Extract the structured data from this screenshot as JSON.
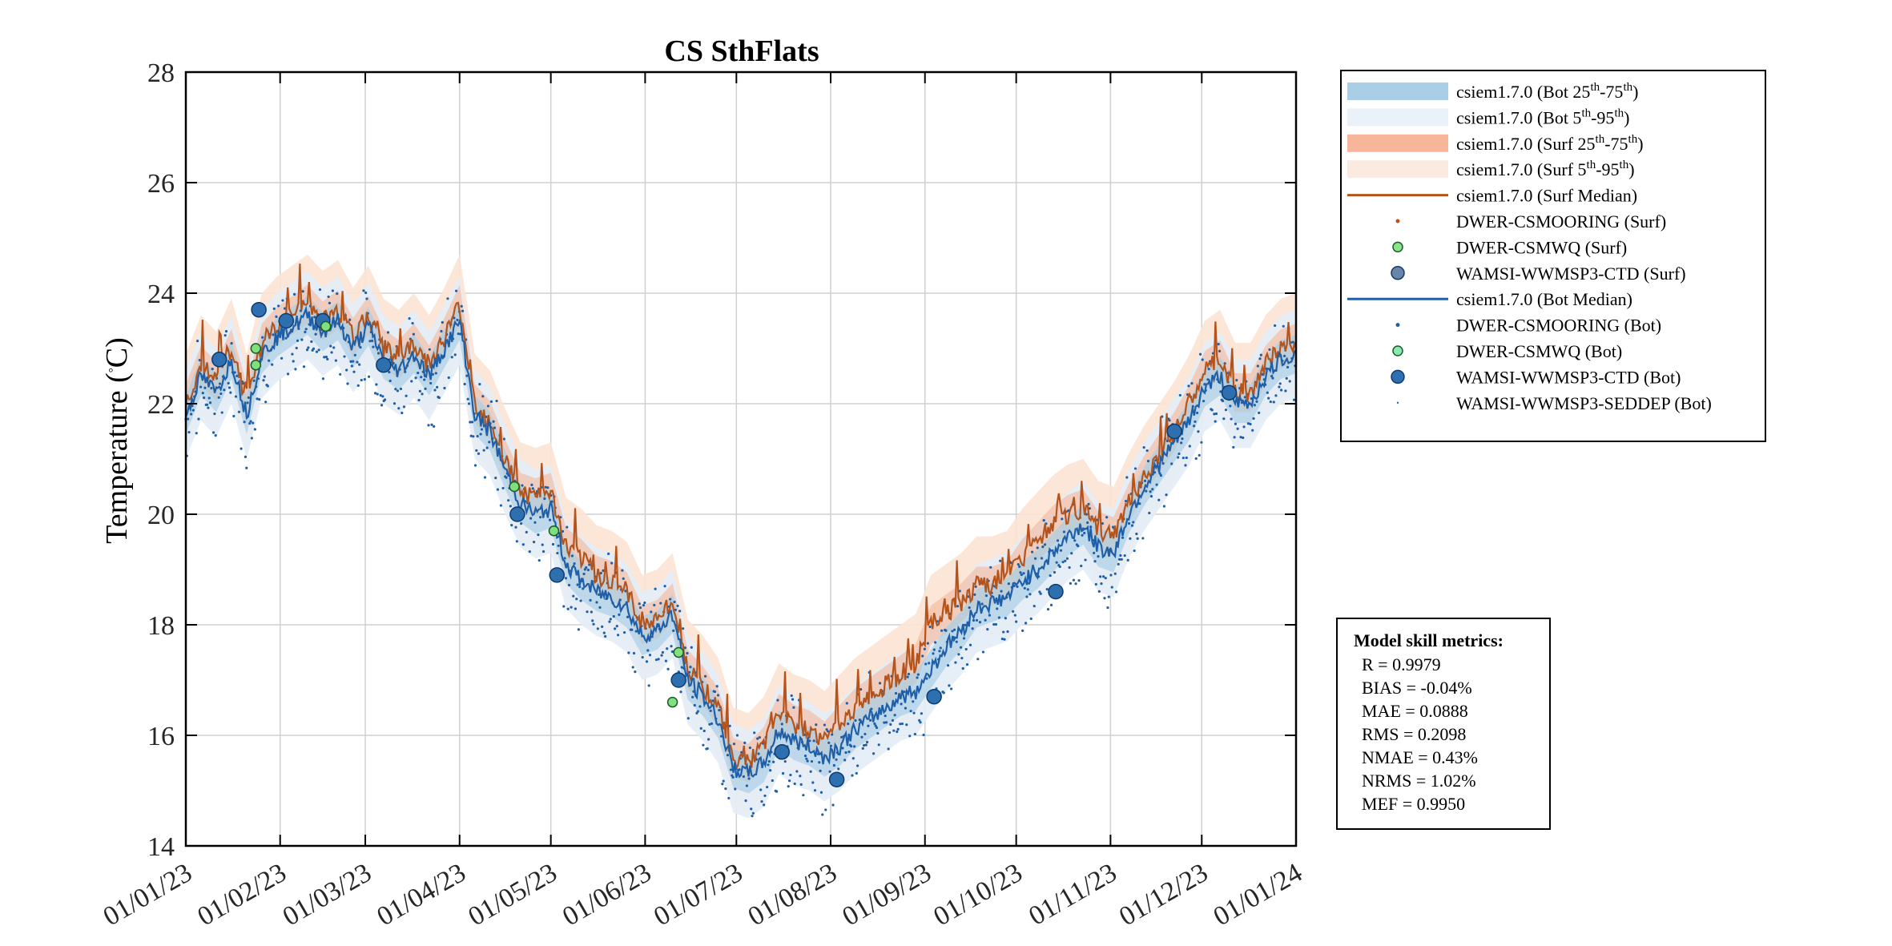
{
  "chart_data": {
    "type": "line",
    "title": "CS SthFlats",
    "ylabel": "Temperature (°C)",
    "ylabel_main": "Temperature (",
    "ylabel_degree": "°",
    "ylabel_unit": "C)",
    "xlabel": "",
    "ylim": [
      14,
      28
    ],
    "yticks": [
      "14",
      "16",
      "18",
      "20",
      "22",
      "24",
      "26",
      "28"
    ],
    "xlim_days": [
      0,
      365
    ],
    "xticks": [
      {
        "day": 0,
        "label": "01/01/23"
      },
      {
        "day": 31,
        "label": "01/02/23"
      },
      {
        "day": 59,
        "label": "01/03/23"
      },
      {
        "day": 90,
        "label": "01/04/23"
      },
      {
        "day": 120,
        "label": "01/05/23"
      },
      {
        "day": 151,
        "label": "01/06/23"
      },
      {
        "day": 181,
        "label": "01/07/23"
      },
      {
        "day": 212,
        "label": "01/08/23"
      },
      {
        "day": 243,
        "label": "01/09/23"
      },
      {
        "day": 273,
        "label": "01/10/23"
      },
      {
        "day": 304,
        "label": "01/11/23"
      },
      {
        "day": 334,
        "label": "01/12/23"
      },
      {
        "day": 365,
        "label": "01/01/24"
      }
    ],
    "grid": true,
    "series": [
      {
        "name": "csiem1.7.0 (Bot Median)",
        "color": "#1f5fa8",
        "x": [
          0,
          5,
          10,
          15,
          20,
          25,
          30,
          35,
          40,
          45,
          50,
          55,
          60,
          65,
          70,
          75,
          80,
          85,
          90,
          95,
          100,
          105,
          110,
          115,
          120,
          125,
          130,
          135,
          140,
          145,
          150,
          155,
          160,
          165,
          170,
          175,
          180,
          185,
          190,
          195,
          200,
          205,
          210,
          215,
          220,
          225,
          230,
          235,
          240,
          245,
          250,
          255,
          260,
          265,
          270,
          275,
          280,
          285,
          290,
          295,
          300,
          305,
          310,
          315,
          320,
          325,
          330,
          335,
          340,
          345,
          350,
          355,
          360,
          365
        ],
        "y": [
          21.8,
          22.5,
          22.2,
          22.8,
          21.8,
          22.9,
          23.2,
          23.4,
          23.6,
          23.3,
          23.5,
          23.0,
          23.4,
          22.8,
          22.6,
          22.9,
          22.5,
          23.0,
          23.5,
          21.8,
          21.5,
          20.8,
          20.2,
          20.0,
          20.1,
          19.1,
          18.8,
          18.6,
          18.5,
          18.3,
          17.8,
          17.9,
          18.2,
          17.0,
          16.7,
          16.3,
          15.4,
          15.3,
          15.5,
          16.1,
          15.9,
          15.8,
          15.6,
          15.8,
          16.1,
          16.3,
          16.5,
          16.7,
          16.8,
          17.2,
          17.6,
          17.9,
          18.3,
          18.4,
          18.5,
          18.8,
          19.0,
          19.3,
          19.6,
          19.8,
          19.4,
          19.3,
          20.0,
          20.5,
          20.9,
          21.3,
          21.7,
          22.3,
          22.5,
          22.0,
          22.0,
          22.5,
          22.8,
          22.9
        ]
      },
      {
        "name": "csiem1.7.0 (Surf Median)",
        "color": "#b4541c",
        "x": [
          0,
          5,
          10,
          15,
          20,
          25,
          30,
          35,
          40,
          45,
          50,
          55,
          60,
          65,
          70,
          75,
          80,
          85,
          90,
          95,
          100,
          105,
          110,
          115,
          120,
          125,
          130,
          135,
          140,
          145,
          150,
          155,
          160,
          165,
          170,
          175,
          180,
          185,
          190,
          195,
          200,
          205,
          210,
          215,
          220,
          225,
          230,
          235,
          240,
          245,
          250,
          255,
          260,
          265,
          270,
          275,
          280,
          285,
          290,
          295,
          300,
          305,
          310,
          315,
          320,
          325,
          330,
          335,
          340,
          345,
          350,
          355,
          360,
          365
        ],
        "y": [
          22.0,
          22.7,
          22.4,
          23.0,
          22.0,
          23.1,
          23.4,
          23.6,
          23.8,
          23.5,
          23.7,
          23.2,
          23.6,
          23.0,
          22.8,
          23.1,
          22.7,
          23.2,
          23.8,
          22.0,
          21.7,
          21.0,
          20.4,
          20.3,
          20.4,
          19.4,
          19.2,
          18.9,
          18.8,
          18.6,
          18.0,
          18.1,
          18.4,
          17.2,
          16.9,
          16.5,
          15.6,
          15.5,
          15.8,
          16.4,
          16.2,
          16.1,
          15.9,
          16.2,
          16.5,
          16.7,
          16.9,
          17.1,
          17.3,
          18.0,
          18.2,
          18.4,
          18.7,
          18.7,
          18.8,
          19.2,
          19.5,
          19.8,
          20.0,
          20.1,
          19.7,
          19.6,
          20.2,
          20.7,
          21.1,
          21.5,
          22.0,
          22.6,
          22.8,
          22.2,
          22.2,
          22.7,
          23.0,
          23.1
        ]
      },
      {
        "name": "DWER-CSMWQ (Surf)",
        "color": "#7ee07e",
        "points": [
          {
            "x": 23,
            "y": 23.0
          },
          {
            "x": 23,
            "y": 22.7
          },
          {
            "x": 46,
            "y": 23.4
          },
          {
            "x": 108,
            "y": 20.5
          },
          {
            "x": 121,
            "y": 19.7
          },
          {
            "x": 162,
            "y": 17.5
          },
          {
            "x": 160,
            "y": 16.6
          }
        ]
      },
      {
        "name": "WAMSI-WWMSP3-CTD (Bot)",
        "color": "#2e6fb0",
        "points": [
          {
            "x": 11,
            "y": 22.8
          },
          {
            "x": 24,
            "y": 23.7
          },
          {
            "x": 33,
            "y": 23.5
          },
          {
            "x": 45,
            "y": 23.5
          },
          {
            "x": 65,
            "y": 22.7
          },
          {
            "x": 109,
            "y": 20.0
          },
          {
            "x": 122,
            "y": 18.9
          },
          {
            "x": 162,
            "y": 17.0
          },
          {
            "x": 196,
            "y": 15.7
          },
          {
            "x": 214,
            "y": 15.2
          },
          {
            "x": 246,
            "y": 16.7
          },
          {
            "x": 286,
            "y": 18.6
          },
          {
            "x": 325,
            "y": 21.5
          },
          {
            "x": 343,
            "y": 22.2
          }
        ]
      }
    ],
    "legend": {
      "position": "top-right",
      "entries": [
        {
          "pre": "csiem1.7.0 (Bot 25",
          "s1": "th",
          "mid": "-75",
          "s2": "th",
          "post": ")",
          "style": "band",
          "color": "#a9cfe6"
        },
        {
          "pre": "csiem1.7.0 (Bot 5",
          "s1": "th",
          "mid": "-95",
          "s2": "th",
          "post": ")",
          "style": "band",
          "color": "#eaf1f8"
        },
        {
          "pre": "csiem1.7.0 (Surf 25",
          "s1": "th",
          "mid": "-75",
          "s2": "th",
          "post": ")",
          "style": "band",
          "color": "#f7b699"
        },
        {
          "pre": "csiem1.7.0 (Surf 5",
          "s1": "th",
          "mid": "-95",
          "s2": "th",
          "post": ")",
          "style": "band",
          "color": "#fbeadf"
        },
        {
          "pre": "csiem1.7.0 (Surf Median)",
          "style": "line",
          "color": "#b4541c"
        },
        {
          "pre": "DWER-CSMOORING (Surf)",
          "style": "dot",
          "color": "#c0501a"
        },
        {
          "pre": "DWER-CSMWQ (Surf)",
          "style": "circle-s",
          "color": "#8be38b"
        },
        {
          "pre": "WAMSI-WWMSP3-CTD (Surf)",
          "style": "circle-l",
          "color": "#6b85a8"
        },
        {
          "pre": "csiem1.7.0 (Bot Median)",
          "style": "line",
          "color": "#1f5fa8"
        },
        {
          "pre": "DWER-CSMOORING (Bot)",
          "style": "dot",
          "color": "#1f5fa8"
        },
        {
          "pre": "DWER-CSMWQ (Bot)",
          "style": "circle-s",
          "color": "#8de8b0"
        },
        {
          "pre": "WAMSI-WWMSP3-CTD (Bot)",
          "style": "circle-l",
          "color": "#2e6fb0"
        },
        {
          "pre": "WAMSI-WWMSP3-SEDDEP (Bot)",
          "style": "tinydot",
          "color": "#1f5fa8"
        }
      ]
    },
    "skill_metrics": {
      "title": "Model skill metrics:",
      "lines": [
        "R    = 0.9979",
        "BIAS = -0.04%",
        "MAE  = 0.0888",
        "RMS  = 0.2098",
        "NMAE = 0.43%",
        "NRMS = 1.02%",
        "MEF  = 0.9950"
      ]
    }
  }
}
